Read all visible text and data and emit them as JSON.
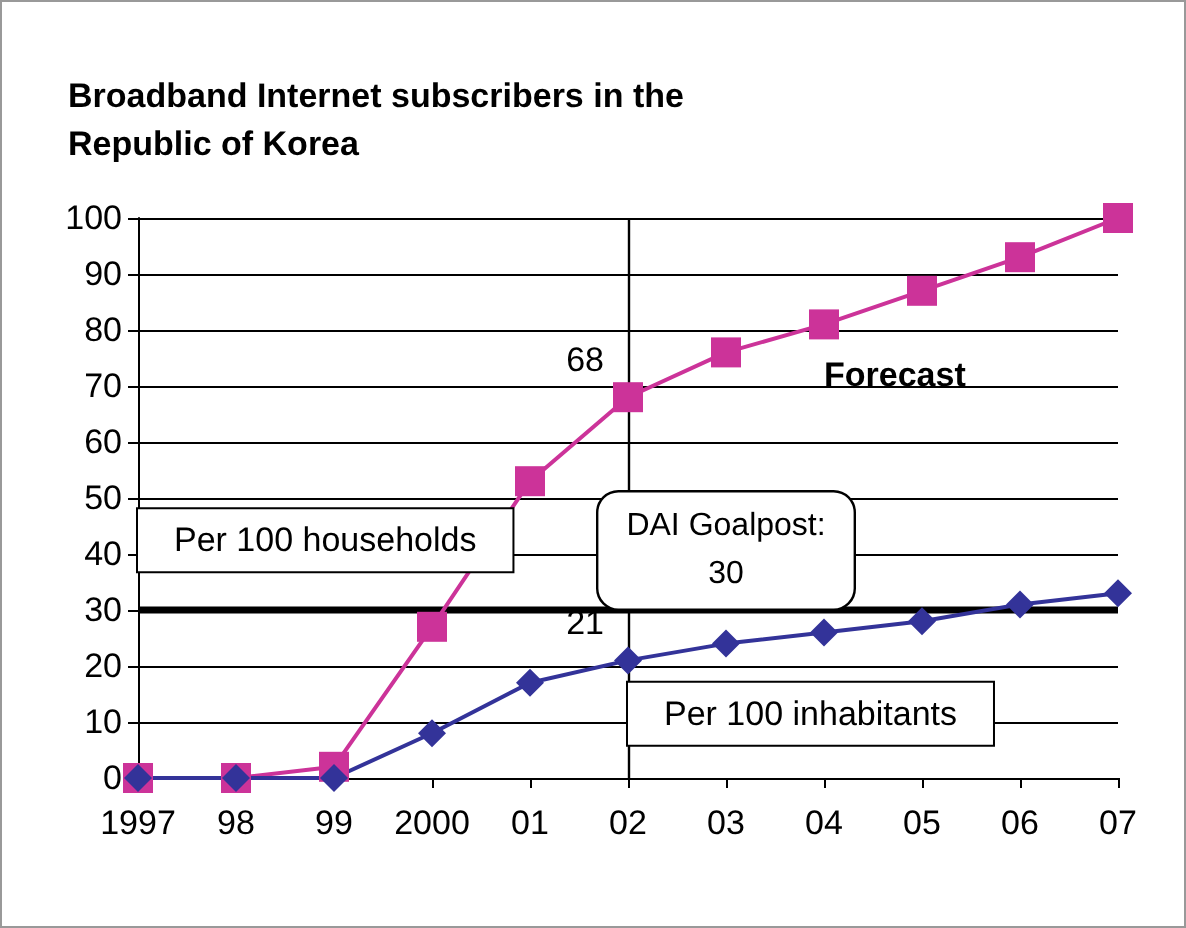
{
  "chart_data": {
    "type": "line",
    "title": "Broadband Internet subscribers in the Republic of Korea",
    "categories": [
      "1997",
      "98",
      "99",
      "2000",
      "01",
      "02",
      "03",
      "04",
      "05",
      "06",
      "07"
    ],
    "series": [
      {
        "name": "Per 100 households",
        "color": "#cc3399",
        "marker": "square",
        "values": [
          0,
          0,
          2,
          27,
          53,
          68,
          76,
          81,
          87,
          93,
          100
        ]
      },
      {
        "name": "Per 100 inhabitants",
        "color": "#333399",
        "marker": "diamond",
        "values": [
          0,
          0,
          0,
          8,
          17,
          21,
          24,
          26,
          28,
          31,
          33
        ]
      }
    ],
    "ylim": [
      0,
      100
    ],
    "yticks": [
      0,
      10,
      20,
      30,
      40,
      50,
      60,
      70,
      80,
      90,
      100
    ],
    "grid": "y",
    "legend": false,
    "ref_lines": [
      {
        "axis": "y",
        "value": 30,
        "label": "DAI Goalpost: 30",
        "color": "#000000"
      },
      {
        "axis": "x",
        "value": "02",
        "color": "#000000"
      }
    ],
    "annotations": [
      {
        "text": "68",
        "x": "02",
        "y": 68
      },
      {
        "text": "21",
        "x": "02",
        "y": 21
      },
      "Forecast"
    ]
  }
}
